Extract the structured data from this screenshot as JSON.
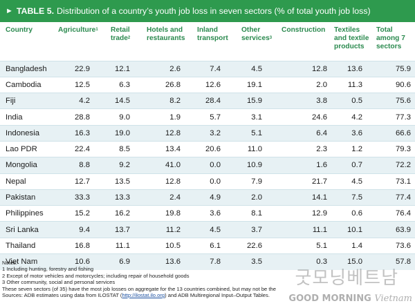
{
  "title": {
    "arrow": "►",
    "label": "TABLE 5.",
    "text": "Distribution of a country’s youth job loss in seven sectors (% of total youth job loss)"
  },
  "headers": [
    {
      "text": "Country",
      "sup": ""
    },
    {
      "text": "Agriculture",
      "sup": "1"
    },
    {
      "text": "Retail trade",
      "sup": "2"
    },
    {
      "text": "Hotels and restaurants",
      "sup": ""
    },
    {
      "text": "Inland transport",
      "sup": ""
    },
    {
      "text": "Other services",
      "sup": "3"
    },
    {
      "text": "Construction",
      "sup": ""
    },
    {
      "text": "Textiles and textile products",
      "sup": ""
    },
    {
      "text": "Total among 7 sectors",
      "sup": ""
    }
  ],
  "rows": [
    [
      "Bangladesh",
      "22.9",
      "12.1",
      "2.6",
      "7.4",
      "4.5",
      "12.8",
      "13.6",
      "75.9"
    ],
    [
      "Cambodia",
      "12.5",
      "6.3",
      "26.8",
      "12.6",
      "19.1",
      "2.0",
      "11.3",
      "90.6"
    ],
    [
      "Fiji",
      "4.2",
      "14.5",
      "8.2",
      "28.4",
      "15.9",
      "3.8",
      "0.5",
      "75.6"
    ],
    [
      "India",
      "28.8",
      "9.0",
      "1.9",
      "5.7",
      "3.1",
      "24.6",
      "4.2",
      "77.3"
    ],
    [
      "Indonesia",
      "16.3",
      "19.0",
      "12.8",
      "3.2",
      "5.1",
      "6.4",
      "3.6",
      "66.6"
    ],
    [
      "Lao PDR",
      "22.4",
      "8.5",
      "13.4",
      "20.6",
      "11.0",
      "2.3",
      "1.2",
      "79.3"
    ],
    [
      "Mongolia",
      "8.8",
      "9.2",
      "41.0",
      "0.0",
      "10.9",
      "1.6",
      "0.7",
      "72.2"
    ],
    [
      "Nepal",
      "12.7",
      "13.5",
      "12.8",
      "0.0",
      "7.9",
      "21.7",
      "4.5",
      "73.1"
    ],
    [
      "Pakistan",
      "33.3",
      "13.3",
      "2.4",
      "4.9",
      "2.0",
      "14.1",
      "7.5",
      "77.4"
    ],
    [
      "Philippines",
      "15.2",
      "16.2",
      "19.8",
      "3.6",
      "8.1",
      "12.9",
      "0.6",
      "76.4"
    ],
    [
      "Sri Lanka",
      "9.4",
      "13.7",
      "11.2",
      "4.5",
      "3.7",
      "11.1",
      "10.1",
      "63.9"
    ],
    [
      "Thailand",
      "16.8",
      "11.1",
      "10.5",
      "6.1",
      "22.6",
      "5.1",
      "1.4",
      "73.6"
    ],
    [
      "Viet Nam",
      "10.6",
      "6.9",
      "13.6",
      "7.8",
      "3.5",
      "0.3",
      "15.0",
      "57.8"
    ]
  ],
  "notes": {
    "heading": "Notes:",
    "lines": [
      "1 Including hunting, forestry and fishing",
      "2 Except of motor vehicles and motorcycles; including repair of household goods",
      "3 Other community, social and personal services",
      "These seven sectors (of 35) have the most job losses on aggregate for the 13 countries combined, but may not be the"
    ],
    "source_prefix": "Sources: ADB estimates using data from ILOSTAT (",
    "source_link": "http://ilostat.ilo.org",
    "source_suffix": ") and ADB Multiregional Input–Output Tables."
  },
  "watermark": {
    "korean": "굿모닝베트남",
    "english_bold": "GOOD MORNING",
    "english_italic": "Vietnam"
  },
  "colors": {
    "title_bg": "#2e9a4e",
    "header_text": "#2b8a4f",
    "stripe": "#e7f1f4"
  }
}
